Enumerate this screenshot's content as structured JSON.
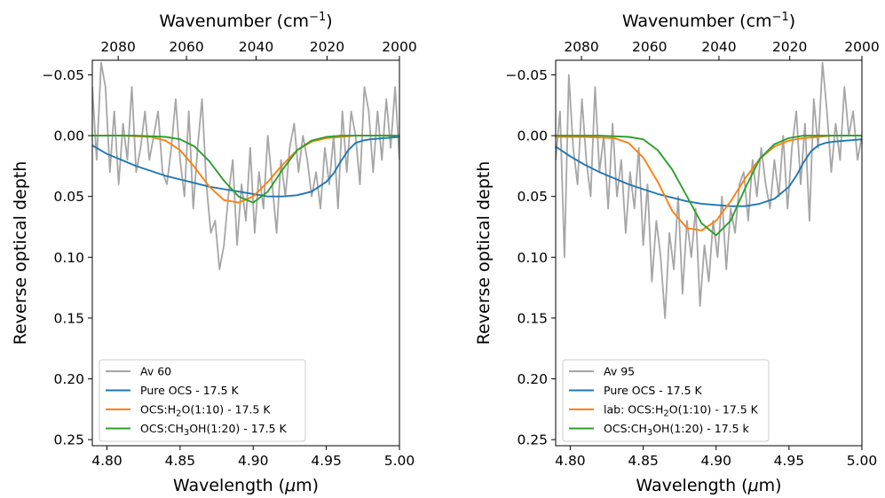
{
  "chart_data": [
    {
      "type": "line",
      "xlabel": "Wavelength (μm)",
      "x2label": "Wavenumber (cm⁻¹)",
      "ylabel": "Reverse optical depth",
      "xlim": [
        4.79,
        5.0
      ],
      "ylim": [
        0.255,
        -0.062
      ],
      "y_inverted": true,
      "xticks": [
        "4.80",
        "4.85",
        "4.90",
        "4.95",
        "5.00"
      ],
      "xtick_values": [
        4.8,
        4.85,
        4.9,
        4.95,
        5.0
      ],
      "yticks": [
        "−0.05",
        "0.00",
        "0.05",
        "0.10",
        "0.15",
        "0.20",
        "0.25"
      ],
      "ytick_values": [
        -0.05,
        0.0,
        0.05,
        0.1,
        0.15,
        0.2,
        0.25
      ],
      "x2ticks": [
        "2080",
        "2060",
        "2040",
        "2020",
        "2000"
      ],
      "x2tick_values": [
        2080,
        2060,
        2040,
        2020,
        2000
      ],
      "legend_position": "lower-left",
      "grid": false,
      "series": [
        {
          "name": "Av 60",
          "color": "#a6a6a6",
          "x": [
            4.79,
            4.793,
            4.796,
            4.799,
            4.802,
            4.805,
            4.808,
            4.811,
            4.814,
            4.817,
            4.82,
            4.823,
            4.826,
            4.829,
            4.832,
            4.835,
            4.838,
            4.841,
            4.844,
            4.847,
            4.85,
            4.853,
            4.856,
            4.859,
            4.862,
            4.865,
            4.868,
            4.871,
            4.874,
            4.877,
            4.88,
            4.883,
            4.886,
            4.889,
            4.892,
            4.895,
            4.898,
            4.901,
            4.904,
            4.907,
            4.91,
            4.913,
            4.916,
            4.919,
            4.922,
            4.925,
            4.928,
            4.931,
            4.934,
            4.937,
            4.94,
            4.943,
            4.946,
            4.949,
            4.952,
            4.955,
            4.958,
            4.961,
            4.964,
            4.967,
            4.97,
            4.973,
            4.976,
            4.979,
            4.982,
            4.985,
            4.988,
            4.991,
            4.994,
            4.997,
            5.0
          ],
          "y": [
            -0.04,
            0.02,
            -0.06,
            -0.04,
            0.03,
            -0.02,
            0.04,
            -0.01,
            0.02,
            -0.04,
            0.03,
            0.01,
            -0.02,
            0.02,
            0.0,
            -0.02,
            0.03,
            0.04,
            0.01,
            -0.03,
            0.02,
            0.05,
            -0.02,
            0.06,
            0.01,
            -0.03,
            0.04,
            0.08,
            0.07,
            0.11,
            0.09,
            0.05,
            0.02,
            0.09,
            0.04,
            0.07,
            0.01,
            0.08,
            0.03,
            0.06,
            0.0,
            0.04,
            0.08,
            0.02,
            0.05,
            0.01,
            -0.01,
            0.03,
            0.0,
            0.02,
            0.05,
            0.03,
            0.06,
            0.01,
            0.04,
            0.0,
            0.06,
            -0.02,
            0.03,
            -0.02,
            0.0,
            0.04,
            -0.04,
            -0.02,
            0.03,
            -0.02,
            0.02,
            -0.03,
            0.01,
            -0.04,
            0.02
          ]
        },
        {
          "name": "Pure OCS - 17.5 K",
          "color": "#1f77b4",
          "x": [
            4.79,
            4.8,
            4.81,
            4.82,
            4.83,
            4.84,
            4.85,
            4.86,
            4.87,
            4.88,
            4.89,
            4.9,
            4.91,
            4.92,
            4.93,
            4.94,
            4.95,
            4.955,
            4.96,
            4.965,
            4.97,
            4.975,
            4.98,
            4.99,
            5.0
          ],
          "y": [
            0.008,
            0.015,
            0.02,
            0.025,
            0.029,
            0.033,
            0.036,
            0.039,
            0.042,
            0.044,
            0.046,
            0.048,
            0.05,
            0.05,
            0.049,
            0.046,
            0.038,
            0.031,
            0.021,
            0.012,
            0.006,
            0.004,
            0.003,
            0.002,
            0.001
          ]
        },
        {
          "name": "OCS:H₂O(1:10) - 17.5 K",
          "color": "#ff7f0e",
          "x": [
            4.79,
            4.81,
            4.83,
            4.84,
            4.85,
            4.86,
            4.87,
            4.88,
            4.89,
            4.9,
            4.91,
            4.92,
            4.93,
            4.94,
            4.95,
            4.96,
            4.97,
            4.98,
            5.0
          ],
          "y": [
            0.0,
            0.0,
            0.001,
            0.004,
            0.012,
            0.026,
            0.042,
            0.053,
            0.055,
            0.05,
            0.038,
            0.024,
            0.012,
            0.005,
            0.002,
            0.001,
            0.0,
            0.0,
            0.0
          ]
        },
        {
          "name": "OCS:CH₃OH(1:20) - 17.5 K",
          "color": "#2ca02c",
          "x": [
            4.79,
            4.82,
            4.84,
            4.85,
            4.86,
            4.87,
            4.88,
            4.89,
            4.9,
            4.91,
            4.92,
            4.93,
            4.94,
            4.95,
            4.96,
            4.98,
            5.0
          ],
          "y": [
            0.0,
            0.0,
            0.001,
            0.003,
            0.009,
            0.021,
            0.037,
            0.05,
            0.055,
            0.046,
            0.028,
            0.012,
            0.004,
            0.001,
            0.0,
            0.0,
            0.0
          ]
        }
      ]
    },
    {
      "type": "line",
      "xlabel": "Wavelength (μm)",
      "x2label": "Wavenumber (cm⁻¹)",
      "ylabel": "Reverse optical depth",
      "xlim": [
        4.79,
        5.0
      ],
      "ylim": [
        0.255,
        -0.062
      ],
      "y_inverted": true,
      "xticks": [
        "4.80",
        "4.85",
        "4.90",
        "4.95",
        "5.00"
      ],
      "xtick_values": [
        4.8,
        4.85,
        4.9,
        4.95,
        5.0
      ],
      "yticks": [
        "−0.05",
        "0.00",
        "0.05",
        "0.10",
        "0.15",
        "0.20",
        "0.25"
      ],
      "ytick_values": [
        -0.05,
        0.0,
        0.05,
        0.1,
        0.15,
        0.2,
        0.25
      ],
      "x2ticks": [
        "2080",
        "2060",
        "2040",
        "2020",
        "2000"
      ],
      "x2tick_values": [
        2080,
        2060,
        2040,
        2020,
        2000
      ],
      "legend_position": "lower-left",
      "grid": false,
      "series": [
        {
          "name": "Av 95",
          "color": "#a6a6a6",
          "x": [
            4.79,
            4.793,
            4.796,
            4.799,
            4.802,
            4.805,
            4.808,
            4.811,
            4.814,
            4.817,
            4.82,
            4.823,
            4.826,
            4.829,
            4.832,
            4.835,
            4.838,
            4.841,
            4.844,
            4.847,
            4.85,
            4.853,
            4.856,
            4.859,
            4.862,
            4.865,
            4.868,
            4.871,
            4.874,
            4.877,
            4.88,
            4.883,
            4.886,
            4.889,
            4.892,
            4.895,
            4.898,
            4.901,
            4.904,
            4.907,
            4.91,
            4.913,
            4.916,
            4.919,
            4.922,
            4.925,
            4.928,
            4.931,
            4.934,
            4.937,
            4.94,
            4.943,
            4.946,
            4.949,
            4.952,
            4.955,
            4.958,
            4.961,
            4.964,
            4.967,
            4.97,
            4.973,
            4.976,
            4.979,
            4.982,
            4.985,
            4.988,
            4.991,
            4.994,
            4.997,
            5.0
          ],
          "y": [
            0.02,
            -0.02,
            0.1,
            -0.05,
            0.01,
            0.04,
            -0.03,
            0.02,
            0.05,
            -0.04,
            0.03,
            0.0,
            0.06,
            -0.01,
            0.05,
            0.02,
            0.08,
            0.03,
            0.06,
            0.01,
            0.09,
            0.04,
            0.12,
            0.07,
            0.1,
            0.15,
            0.08,
            0.11,
            0.05,
            0.13,
            0.07,
            0.1,
            0.06,
            0.14,
            0.09,
            0.12,
            0.07,
            0.1,
            0.05,
            0.11,
            0.06,
            0.08,
            0.04,
            0.03,
            0.07,
            0.02,
            0.05,
            0.01,
            0.04,
            0.06,
            0.02,
            0.05,
            0.0,
            0.06,
            0.01,
            -0.02,
            0.04,
            -0.01,
            0.07,
            -0.03,
            0.01,
            -0.06,
            -0.02,
            0.03,
            -0.01,
            0.02,
            -0.04,
            0.0,
            -0.02,
            0.02,
            0.0
          ]
        },
        {
          "name": "Pure OCS - 17.5 K",
          "color": "#1f77b4",
          "x": [
            4.79,
            4.8,
            4.81,
            4.82,
            4.83,
            4.84,
            4.85,
            4.86,
            4.87,
            4.88,
            4.89,
            4.9,
            4.91,
            4.92,
            4.93,
            4.94,
            4.95,
            4.955,
            4.96,
            4.965,
            4.97,
            4.975,
            4.98,
            4.99,
            5.0
          ],
          "y": [
            0.009,
            0.017,
            0.024,
            0.03,
            0.035,
            0.04,
            0.044,
            0.048,
            0.051,
            0.054,
            0.056,
            0.057,
            0.058,
            0.058,
            0.056,
            0.052,
            0.042,
            0.033,
            0.022,
            0.013,
            0.008,
            0.006,
            0.005,
            0.004,
            0.003
          ]
        },
        {
          "name": "lab: OCS:H₂O(1:10) - 17.5 K",
          "color": "#ff7f0e",
          "x": [
            4.79,
            4.81,
            4.83,
            4.84,
            4.85,
            4.86,
            4.87,
            4.88,
            4.89,
            4.9,
            4.91,
            4.92,
            4.93,
            4.94,
            4.95,
            4.96,
            4.97,
            4.98,
            5.0
          ],
          "y": [
            0.001,
            0.001,
            0.002,
            0.006,
            0.018,
            0.038,
            0.062,
            0.076,
            0.078,
            0.07,
            0.054,
            0.035,
            0.019,
            0.009,
            0.004,
            0.002,
            0.001,
            0.0,
            0.0
          ]
        },
        {
          "name": "OCS:CH₃OH(1:20) - 17.5 k",
          "color": "#2ca02c",
          "x": [
            4.79,
            4.82,
            4.84,
            4.85,
            4.86,
            4.87,
            4.88,
            4.89,
            4.9,
            4.91,
            4.92,
            4.93,
            4.94,
            4.95,
            4.96,
            4.98,
            5.0
          ],
          "y": [
            0.0,
            0.0,
            0.001,
            0.003,
            0.012,
            0.028,
            0.05,
            0.072,
            0.082,
            0.07,
            0.043,
            0.019,
            0.007,
            0.002,
            0.0,
            0.0,
            0.0
          ]
        }
      ]
    }
  ]
}
